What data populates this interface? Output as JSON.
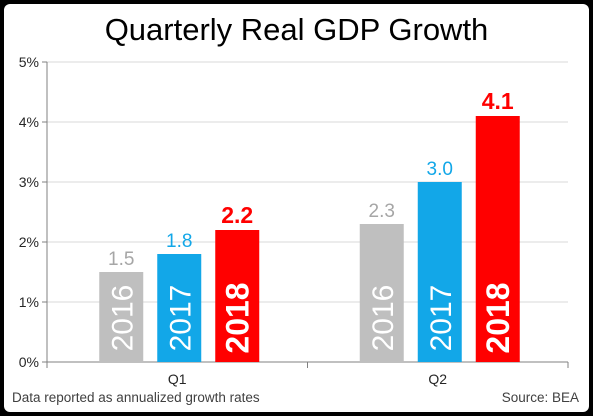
{
  "chart_data": {
    "type": "bar",
    "title": "Quarterly Real GDP Growth",
    "categories": [
      "Q1",
      "Q2"
    ],
    "series": [
      {
        "name": "2016",
        "values": [
          1.5,
          2.3
        ],
        "color": "#bfbfbf",
        "value_color": "#a6a6a6",
        "emphasis": false
      },
      {
        "name": "2017",
        "values": [
          1.8,
          3.0
        ],
        "color": "#12a7e8",
        "value_color": "#12a7e8",
        "emphasis": false
      },
      {
        "name": "2018",
        "values": [
          2.2,
          4.1
        ],
        "color": "#ff0000",
        "value_color": "#ff0000",
        "emphasis": true
      }
    ],
    "value_labels": [
      [
        "1.5",
        "2.3"
      ],
      [
        "1.8",
        "3.0"
      ],
      [
        "2.2",
        "4.1"
      ]
    ],
    "y_ticks": [
      "0%",
      "1%",
      "2%",
      "3%",
      "4%",
      "5%"
    ],
    "ylim": [
      0,
      5
    ],
    "grid": true,
    "legend": "inside-bars"
  },
  "footnote": "Data reported  as annualized growth  rates",
  "source": "Source:  BEA"
}
